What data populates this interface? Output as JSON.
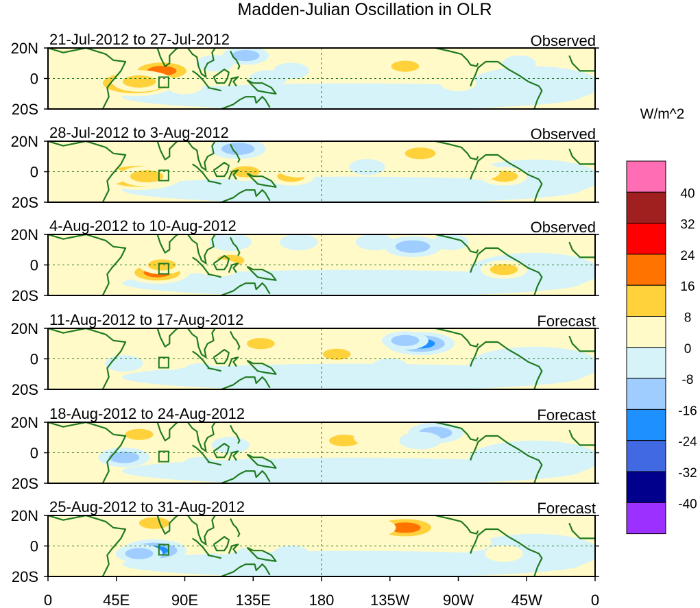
{
  "chart_data": {
    "type": "heatmap",
    "title": "Madden-Julian Oscillation in OLR",
    "variable": "OLR anomaly",
    "units_label": "W/m^2",
    "colorbar": {
      "labels": [
        "40",
        "32",
        "24",
        "16",
        "8",
        "0",
        "-8",
        "-16",
        "-24",
        "-32",
        "-40"
      ],
      "bins": [
        {
          "range": ">40",
          "color": "#ff6eb4"
        },
        {
          "range": "32 to 40",
          "color": "#a02020"
        },
        {
          "range": "24 to 32",
          "color": "#ff0000"
        },
        {
          "range": "16 to 24",
          "color": "#ff7300"
        },
        {
          "range": "8 to 16",
          "color": "#ffd23c"
        },
        {
          "range": "0 to 8",
          "color": "#fffac8"
        },
        {
          "range": "-8 to 0",
          "color": "#d6f3fa"
        },
        {
          "range": "-16 to -8",
          "color": "#a0cdff"
        },
        {
          "range": "-24 to -16",
          "color": "#1e90ff"
        },
        {
          "range": "-32 to -24",
          "color": "#4169e1"
        },
        {
          "range": "-40 to -32",
          "color": "#00008c"
        },
        {
          "range": "<-40",
          "color": "#9b30ff"
        }
      ]
    },
    "x_ticks": [
      "0",
      "45E",
      "90E",
      "135E",
      "180",
      "135W",
      "90W",
      "45W",
      "0"
    ],
    "y_ticks": [
      "20N",
      "0",
      "20S"
    ],
    "xlim": [
      0,
      360
    ],
    "ylim": [
      -20,
      20
    ],
    "panels": [
      {
        "period": "21-Jul-2012 to 27-Jul-2012",
        "status": "Observed",
        "features": [
          {
            "lon": 75,
            "lat": 5,
            "value": 20
          },
          {
            "lon": 57,
            "lat": -3,
            "value": 26
          },
          {
            "lon": 60,
            "lat": -2,
            "value": 14
          },
          {
            "lon": 90,
            "lat": -5,
            "value": 5
          },
          {
            "lon": 130,
            "lat": 15,
            "value": -10
          },
          {
            "lon": 110,
            "lat": 10,
            "value": -6
          },
          {
            "lon": 145,
            "lat": 0,
            "value": -6
          },
          {
            "lon": 160,
            "lat": 5,
            "value": -5
          },
          {
            "lon": 235,
            "lat": 8,
            "value": 10
          },
          {
            "lon": 290,
            "lat": -5,
            "value": -5
          },
          {
            "lon": 270,
            "lat": -3,
            "value": 5
          },
          {
            "lon": 310,
            "lat": 10,
            "value": -4
          }
        ]
      },
      {
        "period": "28-Jul-2012 to 3-Aug-2012",
        "status": "Observed",
        "features": [
          {
            "lon": 60,
            "lat": -3,
            "value": 28
          },
          {
            "lon": 65,
            "lat": -3,
            "value": 14
          },
          {
            "lon": 125,
            "lat": 15,
            "value": -14
          },
          {
            "lon": 130,
            "lat": 0,
            "value": 10
          },
          {
            "lon": 160,
            "lat": -3,
            "value": 10
          },
          {
            "lon": 165,
            "lat": 2,
            "value": 8
          },
          {
            "lon": 245,
            "lat": 12,
            "value": 12
          },
          {
            "lon": 300,
            "lat": -3,
            "value": 10
          },
          {
            "lon": 285,
            "lat": 0,
            "value": 6
          },
          {
            "lon": 210,
            "lat": 3,
            "value": -5
          },
          {
            "lon": 40,
            "lat": -3,
            "value": 5
          }
        ]
      },
      {
        "period": "4-Aug-2012 to 10-Aug-2012",
        "status": "Observed",
        "features": [
          {
            "lon": 72,
            "lat": -5,
            "value": 18
          },
          {
            "lon": 75,
            "lat": 0,
            "value": 10
          },
          {
            "lon": 120,
            "lat": 3,
            "value": 10
          },
          {
            "lon": 112,
            "lat": -2,
            "value": 8
          },
          {
            "lon": 120,
            "lat": 15,
            "value": -8
          },
          {
            "lon": 240,
            "lat": 12,
            "value": -15
          },
          {
            "lon": 215,
            "lat": 15,
            "value": -6
          },
          {
            "lon": 300,
            "lat": -3,
            "value": 10
          },
          {
            "lon": 265,
            "lat": 15,
            "value": -5
          },
          {
            "lon": 165,
            "lat": 15,
            "value": -6
          }
        ]
      },
      {
        "period": "11-Aug-2012 to 17-Aug-2012",
        "status": "Forecast",
        "features": [
          {
            "lon": 245,
            "lat": 10,
            "value": -20
          },
          {
            "lon": 235,
            "lat": 12,
            "value": -10
          },
          {
            "lon": 190,
            "lat": 3,
            "value": 10
          },
          {
            "lon": 140,
            "lat": 10,
            "value": 10
          },
          {
            "lon": 80,
            "lat": -2,
            "value": 5
          },
          {
            "lon": 50,
            "lat": -3,
            "value": -6
          },
          {
            "lon": 225,
            "lat": -5,
            "value": -5
          },
          {
            "lon": 100,
            "lat": -8,
            "value": -4
          }
        ]
      },
      {
        "period": "18-Aug-2012 to 24-Aug-2012",
        "status": "Forecast",
        "features": [
          {
            "lon": 195,
            "lat": 8,
            "value": 12
          },
          {
            "lon": 215,
            "lat": 10,
            "value": 8
          },
          {
            "lon": 60,
            "lat": 12,
            "value": 10
          },
          {
            "lon": 50,
            "lat": -3,
            "value": -12
          },
          {
            "lon": 255,
            "lat": 13,
            "value": -14
          },
          {
            "lon": 245,
            "lat": 8,
            "value": -8
          },
          {
            "lon": 285,
            "lat": -10,
            "value": -8
          },
          {
            "lon": 120,
            "lat": 5,
            "value": -6
          },
          {
            "lon": 100,
            "lat": -8,
            "value": -5
          }
        ]
      },
      {
        "period": "25-Aug-2012 to 31-Aug-2012",
        "status": "Forecast",
        "features": [
          {
            "lon": 70,
            "lat": -3,
            "value": -18
          },
          {
            "lon": 60,
            "lat": -5,
            "value": -10
          },
          {
            "lon": 235,
            "lat": 12,
            "value": 22
          },
          {
            "lon": 215,
            "lat": 12,
            "value": 8
          },
          {
            "lon": 70,
            "lat": 15,
            "value": 12
          },
          {
            "lon": 120,
            "lat": -5,
            "value": -6
          },
          {
            "lon": 115,
            "lat": 0,
            "value": 6
          },
          {
            "lon": 280,
            "lat": 2,
            "value": 5
          },
          {
            "lon": 300,
            "lat": -5,
            "value": 6
          },
          {
            "lon": 160,
            "lat": -5,
            "value": -5
          }
        ]
      }
    ]
  }
}
